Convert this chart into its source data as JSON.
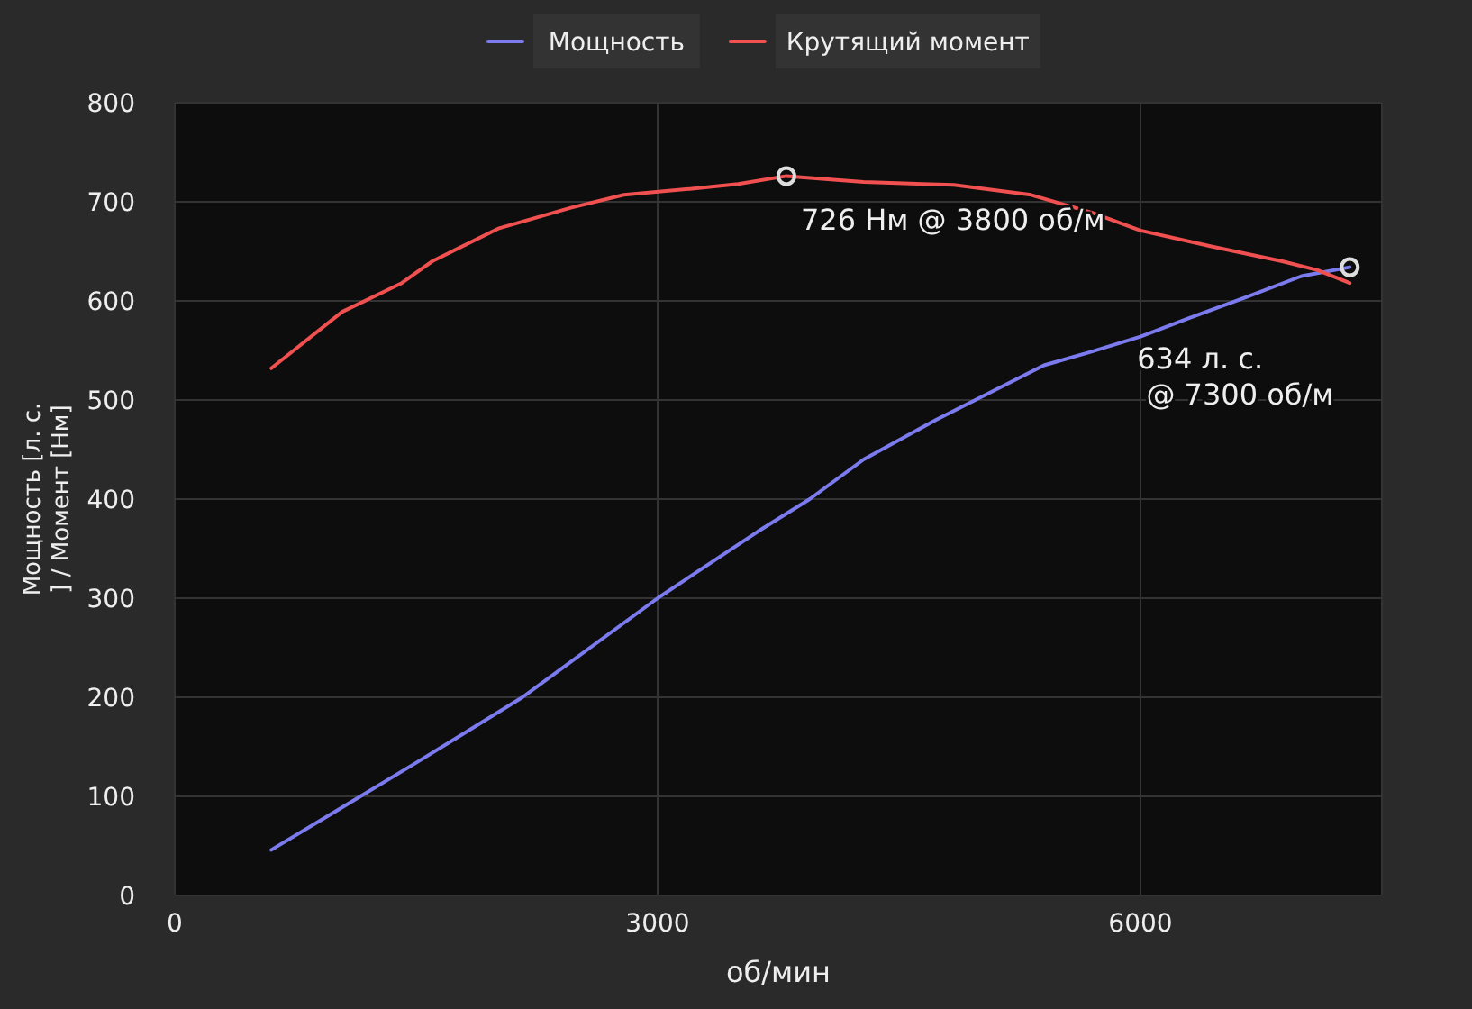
{
  "chart_data": {
    "type": "line",
    "xlabel": "об/мин",
    "ylabel": "Мощность [л. с.\n] / Момент [Нм]",
    "xlim": [
      0,
      7500
    ],
    "xticks": [
      0,
      3000,
      6000
    ],
    "ylim": [
      0,
      800
    ],
    "yticks": [
      0,
      100,
      200,
      300,
      400,
      500,
      600,
      700,
      800
    ],
    "grid": true,
    "legend": "top",
    "marker": "none",
    "line_style": "solid",
    "series": [
      {
        "name": "Мощность",
        "color": "#7b7bef",
        "x": [
          600,
          1000,
          1500,
          2160,
          3000,
          3620,
          3945,
          4280,
          4730,
          5400,
          5700,
          6000,
          6290,
          6660,
          7000,
          7300
        ],
        "values": [
          46,
          85,
          134,
          200,
          300,
          367,
          400,
          440,
          480,
          535,
          549,
          564,
          582,
          604,
          625,
          634
        ]
      },
      {
        "name": "Крутящий момент",
        "color": "#f05050",
        "x": [
          600,
          1040,
          1410,
          1600,
          2010,
          2460,
          2790,
          3200,
          3500,
          3800,
          4280,
          4840,
          5320,
          5700,
          6000,
          6440,
          6880,
          7100,
          7300
        ],
        "values": [
          532,
          589,
          618,
          640,
          673,
          694,
          707,
          713,
          718,
          726,
          720,
          717,
          707,
          689,
          671,
          655,
          640,
          631,
          618
        ]
      }
    ],
    "annotations": [
      {
        "text": "726 Нм @ 3800 об/м",
        "x": 3800,
        "y": 726
      },
      {
        "text": "634 л. с.\n @ 7300 об/м",
        "x": 7300,
        "y": 634
      }
    ]
  }
}
